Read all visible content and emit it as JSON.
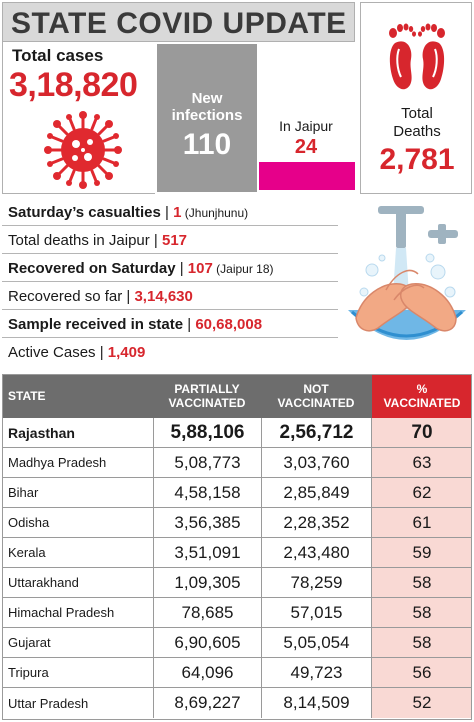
{
  "header": {
    "title": "STATE COVID UPDATE"
  },
  "total_cases": {
    "label": "Total cases",
    "value": "3,18,820"
  },
  "new_infections": {
    "label": "New\ninfections",
    "value": "110"
  },
  "jaipur": {
    "label": "In Jaipur",
    "value": "24"
  },
  "total_deaths": {
    "label": "Total\nDeaths",
    "value": "2,781"
  },
  "stats": [
    {
      "label": "Saturday’s casualties",
      "sep": " | ",
      "value": "1",
      "note": " (Jhunjhunu)",
      "bold": true
    },
    {
      "label": "Total deaths in Jaipur",
      "sep": " | ",
      "value": "517",
      "note": "",
      "bold": false
    },
    {
      "label": "Recovered on Saturday",
      "sep": " | ",
      "value": "107",
      "note": " (Jaipur 18)",
      "bold": true
    },
    {
      "label": "Recovered so far",
      "sep": " | ",
      "value": "3,14,630",
      "note": "",
      "bold": false
    },
    {
      "label": "Sample received in state",
      "sep": " | ",
      "value": "60,68,008",
      "note": "",
      "bold": true
    },
    {
      "label": "Active Cases",
      "sep": " | ",
      "value": "1,409",
      "note": "",
      "bold": false
    }
  ],
  "table": {
    "headers": {
      "state": "STATE",
      "partial": "PARTIALLY\nVACCINATED",
      "notvac": "NOT\nVACCINATED",
      "pct": "%\nVACCINATED"
    },
    "rows": [
      {
        "state": "Rajasthan",
        "partial": "5,88,106",
        "notvac": "2,56,712",
        "pct": "70"
      },
      {
        "state": "Madhya Pradesh",
        "partial": "5,08,773",
        "notvac": "3,03,760",
        "pct": "63"
      },
      {
        "state": "Bihar",
        "partial": "4,58,158",
        "notvac": "2,85,849",
        "pct": "62"
      },
      {
        "state": "Odisha",
        "partial": "3,56,385",
        "notvac": "2,28,352",
        "pct": "61"
      },
      {
        "state": "Kerala",
        "partial": "3,51,091",
        "notvac": "2,43,480",
        "pct": "59"
      },
      {
        "state": "Uttarakhand",
        "partial": "1,09,305",
        "notvac": "78,259",
        "pct": "58"
      },
      {
        "state": "Himachal Pradesh",
        "partial": "78,685",
        "notvac": "57,015",
        "pct": "58"
      },
      {
        "state": "Gujarat",
        "partial": "6,90,605",
        "notvac": "5,05,054",
        "pct": "58"
      },
      {
        "state": "Tripura",
        "partial": "64,096",
        "notvac": "49,723",
        "pct": "56"
      },
      {
        "state": "Uttar Pradesh",
        "partial": "8,69,227",
        "notvac": "8,14,509",
        "pct": "52"
      }
    ]
  },
  "colors": {
    "accent_red": "#d7262d",
    "magenta_bar": "#e6008a",
    "header_gray": "#6d6d6d",
    "pct_cell_bg": "#f9d9d4"
  },
  "icons": [
    "virus-icon",
    "footprints-icon",
    "handwash-icon"
  ]
}
